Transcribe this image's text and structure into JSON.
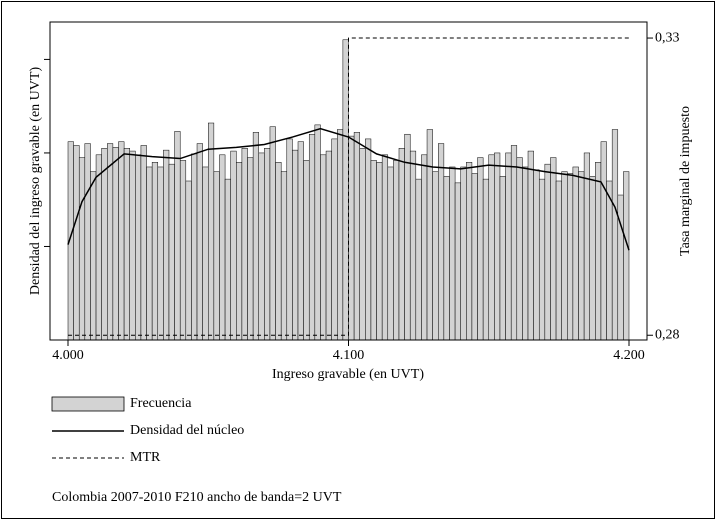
{
  "chart_data": {
    "type": "histogram",
    "xlabel": "Ingreso gravable (en UVT)",
    "ylabel": "Densidad del ingreso gravable (en UVT)",
    "y2label": "Tasa marginal de impuesto",
    "note": "Colombia 2007-2010 F210 ancho de banda=2 UVT",
    "xlim": [
      4000,
      4200
    ],
    "xticks": [
      {
        "value": 4000,
        "label": "4.000"
      },
      {
        "value": 4100,
        "label": "4.100"
      },
      {
        "value": 4200,
        "label": "4.200"
      }
    ],
    "ylim": [
      0,
      3.4
    ],
    "yticks": [
      1,
      2,
      3
    ],
    "y2lim": [
      0.2792,
      0.3327
    ],
    "y2ticks": [
      {
        "value": 0.33,
        "label": "0,33"
      },
      {
        "value": 0.28,
        "label": "0,28"
      }
    ],
    "bins": [
      4000,
      4002,
      4004,
      4006,
      4008,
      4010,
      4012,
      4014,
      4016,
      4018,
      4020,
      4022,
      4024,
      4026,
      4028,
      4030,
      4032,
      4034,
      4036,
      4038,
      4040,
      4042,
      4044,
      4046,
      4048,
      4050,
      4052,
      4054,
      4056,
      4058,
      4060,
      4062,
      4064,
      4066,
      4068,
      4070,
      4072,
      4074,
      4076,
      4078,
      4080,
      4082,
      4084,
      4086,
      4088,
      4090,
      4092,
      4094,
      4096,
      4098,
      4100,
      4102,
      4104,
      4106,
      4108,
      4110,
      4112,
      4114,
      4116,
      4118,
      4120,
      4122,
      4124,
      4126,
      4128,
      4130,
      4132,
      4134,
      4136,
      4138,
      4140,
      4142,
      4144,
      4146,
      4148,
      4150,
      4152,
      4154,
      4156,
      4158,
      4160,
      4162,
      4164,
      4166,
      4168,
      4170,
      4172,
      4174,
      4176,
      4178,
      4180,
      4182,
      4184,
      4186,
      4188,
      4190,
      4192,
      4194,
      4196,
      4198,
      4200
    ],
    "series": [
      {
        "name": "Frecuencia",
        "type": "histogram",
        "color": "#d3d3d3",
        "values": [
          2.12,
          2.08,
          1.95,
          2.1,
          1.8,
          1.98,
          2.05,
          2.1,
          2.06,
          2.12,
          2.05,
          2.02,
          1.98,
          2.08,
          1.85,
          1.9,
          1.85,
          2.03,
          1.88,
          2.23,
          1.92,
          1.7,
          1.99,
          2.1,
          1.85,
          2.32,
          1.8,
          1.98,
          1.72,
          2.02,
          1.9,
          2.05,
          1.95,
          2.22,
          2.0,
          2.05,
          2.28,
          1.9,
          1.8,
          2.15,
          2.03,
          2.12,
          1.92,
          2.2,
          2.3,
          1.98,
          2.02,
          2.15,
          2.25,
          3.21,
          2.18,
          2.22,
          2.05,
          2.15,
          1.92,
          1.9,
          1.98,
          1.85,
          1.92,
          2.05,
          2.2,
          2.02,
          1.72,
          1.98,
          2.25,
          1.8,
          2.1,
          1.75,
          1.85,
          1.68,
          1.85,
          1.9,
          1.78,
          1.95,
          1.72,
          1.98,
          2.0,
          1.75,
          2.0,
          2.08,
          1.95,
          1.85,
          2.02,
          1.82,
          1.72,
          1.88,
          1.95,
          1.7,
          1.8,
          1.78,
          1.85,
          1.8,
          2.0,
          1.75,
          1.9,
          2.12,
          1.7,
          2.25,
          1.55,
          1.8
        ]
      },
      {
        "name": "Densidad del núcleo",
        "type": "line",
        "color": "#000000",
        "x": [
          4000,
          4005,
          4010,
          4020,
          4030,
          4040,
          4050,
          4060,
          4070,
          4080,
          4090,
          4100,
          4110,
          4120,
          4130,
          4140,
          4150,
          4160,
          4170,
          4180,
          4190,
          4195,
          4200
        ],
        "values": [
          1.02,
          1.48,
          1.74,
          1.99,
          1.96,
          1.94,
          2.04,
          2.06,
          2.09,
          2.17,
          2.26,
          2.17,
          1.99,
          1.9,
          1.85,
          1.83,
          1.87,
          1.85,
          1.8,
          1.76,
          1.69,
          1.42,
          0.96
        ]
      },
      {
        "name": "MTR",
        "type": "line",
        "axis": "y2",
        "dashed": true,
        "color": "#000000",
        "x": [
          4000,
          4100,
          4100,
          4200
        ],
        "values": [
          0.28,
          0.28,
          0.33,
          0.33
        ]
      }
    ]
  }
}
